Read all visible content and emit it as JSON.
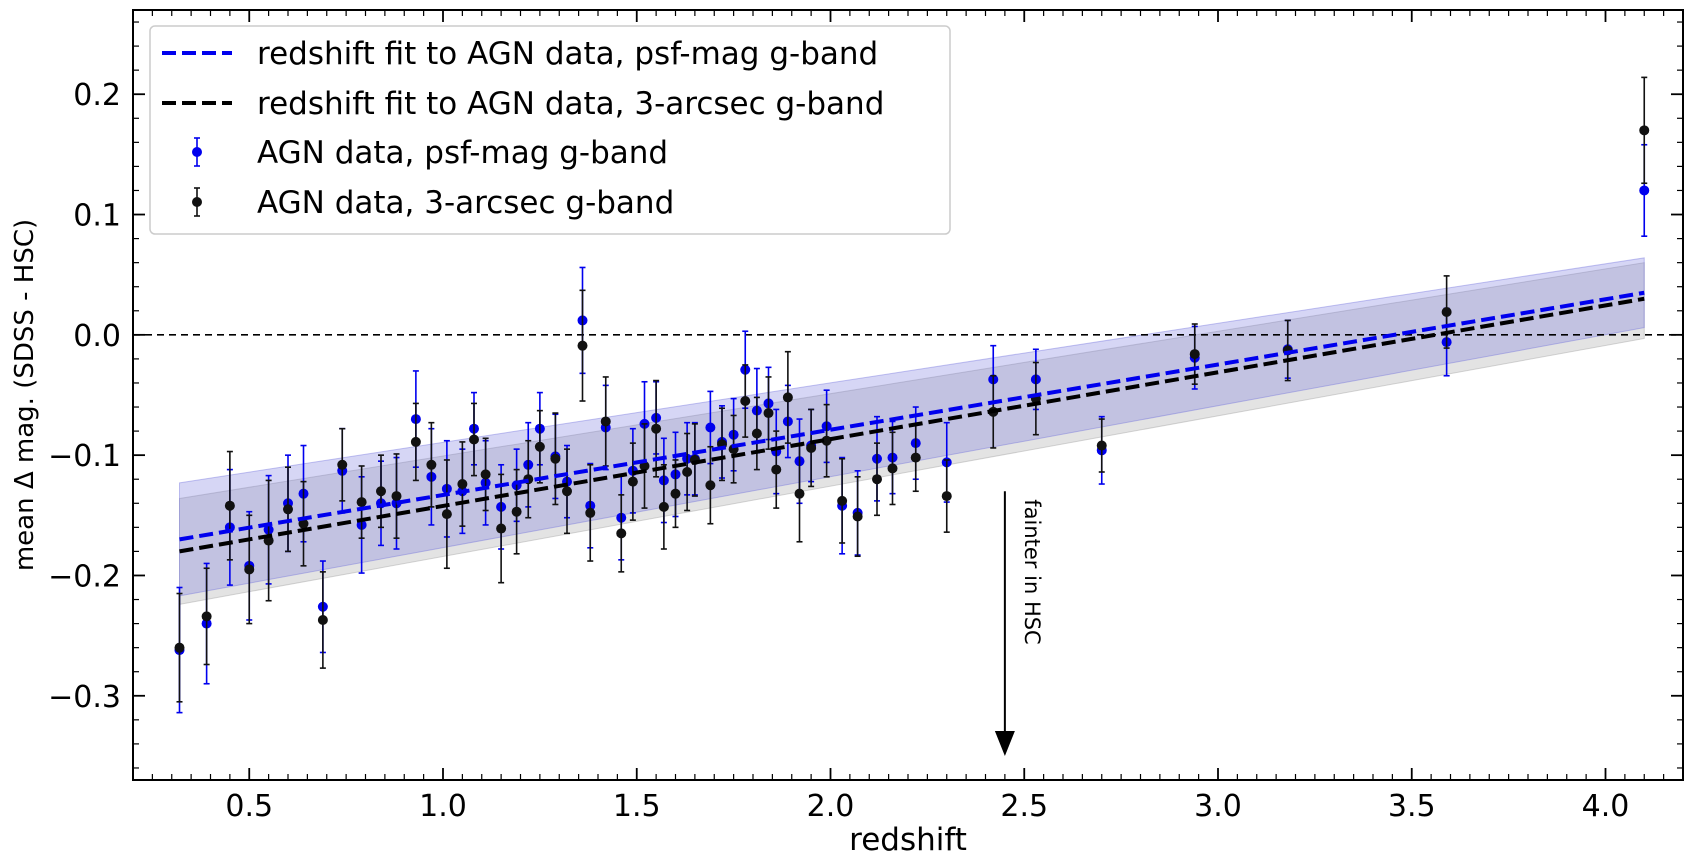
{
  "chart_data": {
    "type": "scatter",
    "xlabel": "redshift",
    "ylabel": "mean Δ mag. (SDSS - HSC)",
    "xlim": [
      0.2,
      4.2
    ],
    "ylim": [
      -0.37,
      0.27
    ],
    "x_ticks": [
      0.5,
      1.0,
      1.5,
      2.0,
      2.5,
      3.0,
      3.5,
      4.0
    ],
    "x_tick_labels": [
      "0.5",
      "1.0",
      "1.5",
      "2.0",
      "2.5",
      "3.0",
      "3.5",
      "4.0"
    ],
    "y_ticks": [
      -0.3,
      -0.2,
      -0.1,
      0.0,
      0.1,
      0.2
    ],
    "y_tick_labels": [
      "−0.3",
      "−0.2",
      "−0.1",
      "0.0",
      "0.1",
      "0.2"
    ],
    "grid": false,
    "legend_position": "top-left",
    "reference_line": {
      "y": 0.0,
      "style": "dashed",
      "color": "#000000"
    },
    "annotation": {
      "text": "fainter in HSC",
      "arrow_x": 2.45,
      "arrow_y_start": -0.13,
      "arrow_y_end": -0.35
    },
    "fits": [
      {
        "name": "redshift fit to AGN data, psf-mag g-band",
        "color": "#0000ee",
        "x": [
          0.32,
          4.1
        ],
        "y": [
          -0.17,
          0.035
        ],
        "band_upper": [
          -0.123,
          0.064
        ],
        "band_lower": [
          -0.217,
          0.006
        ],
        "band_color": "#6b6bdb"
      },
      {
        "name": "redshift fit to AGN data, 3-arcsec g-band",
        "color": "#000000",
        "x": [
          0.32,
          4.1
        ],
        "y": [
          -0.18,
          0.03
        ],
        "band_upper": [
          -0.136,
          0.06
        ],
        "band_lower": [
          -0.224,
          -0.003
        ],
        "band_color": "#9b9b9b"
      }
    ],
    "series": [
      {
        "name": "AGN data, psf-mag g-band",
        "color": "#0000ee",
        "points": [
          [
            0.32,
            -0.262,
            0.052
          ],
          [
            0.39,
            -0.24,
            0.05
          ],
          [
            0.45,
            -0.16,
            0.048
          ],
          [
            0.5,
            -0.192,
            0.045
          ],
          [
            0.55,
            -0.162,
            0.045
          ],
          [
            0.6,
            -0.14,
            0.04
          ],
          [
            0.64,
            -0.132,
            0.04
          ],
          [
            0.69,
            -0.226,
            0.038
          ],
          [
            0.74,
            -0.113,
            0.035
          ],
          [
            0.79,
            -0.158,
            0.04
          ],
          [
            0.84,
            -0.14,
            0.035
          ],
          [
            0.88,
            -0.14,
            0.038
          ],
          [
            0.93,
            -0.07,
            0.04
          ],
          [
            0.97,
            -0.118,
            0.04
          ],
          [
            1.01,
            -0.128,
            0.04
          ],
          [
            1.05,
            -0.13,
            0.035
          ],
          [
            1.08,
            -0.078,
            0.03
          ],
          [
            1.11,
            -0.123,
            0.035
          ],
          [
            1.15,
            -0.143,
            0.035
          ],
          [
            1.19,
            -0.125,
            0.03
          ],
          [
            1.22,
            -0.108,
            0.035
          ],
          [
            1.25,
            -0.078,
            0.03
          ],
          [
            1.29,
            -0.101,
            0.035
          ],
          [
            1.32,
            -0.122,
            0.03
          ],
          [
            1.36,
            0.012,
            0.044
          ],
          [
            1.38,
            -0.142,
            0.035
          ],
          [
            1.42,
            -0.077,
            0.035
          ],
          [
            1.46,
            -0.152,
            0.035
          ],
          [
            1.49,
            -0.113,
            0.035
          ],
          [
            1.52,
            -0.074,
            0.035
          ],
          [
            1.55,
            -0.069,
            0.03
          ],
          [
            1.57,
            -0.121,
            0.035
          ],
          [
            1.6,
            -0.116,
            0.035
          ],
          [
            1.63,
            -0.103,
            0.03
          ],
          [
            1.65,
            -0.103,
            0.03
          ],
          [
            1.69,
            -0.077,
            0.03
          ],
          [
            1.72,
            -0.089,
            0.03
          ],
          [
            1.75,
            -0.083,
            0.03
          ],
          [
            1.78,
            -0.029,
            0.032
          ],
          [
            1.81,
            -0.063,
            0.035
          ],
          [
            1.84,
            -0.057,
            0.03
          ],
          [
            1.86,
            -0.097,
            0.035
          ],
          [
            1.89,
            -0.072,
            0.03
          ],
          [
            1.92,
            -0.105,
            0.035
          ],
          [
            1.95,
            -0.092,
            0.03
          ],
          [
            1.99,
            -0.076,
            0.03
          ],
          [
            2.03,
            -0.142,
            0.04
          ],
          [
            2.07,
            -0.148,
            0.035
          ],
          [
            2.12,
            -0.103,
            0.035
          ],
          [
            2.16,
            -0.102,
            0.03
          ],
          [
            2.22,
            -0.09,
            0.03
          ],
          [
            2.3,
            -0.106,
            0.033
          ],
          [
            2.42,
            -0.037,
            0.028
          ],
          [
            2.53,
            -0.037,
            0.025
          ],
          [
            2.7,
            -0.096,
            0.028
          ],
          [
            2.94,
            -0.019,
            0.026
          ],
          [
            3.18,
            -0.012,
            0.024
          ],
          [
            3.59,
            -0.006,
            0.028
          ],
          [
            4.1,
            0.12,
            0.038
          ]
        ]
      },
      {
        "name": "AGN data, 3-arcsec g-band",
        "color": "#111111",
        "points": [
          [
            0.32,
            -0.26,
            0.045
          ],
          [
            0.39,
            -0.234,
            0.04
          ],
          [
            0.45,
            -0.142,
            0.045
          ],
          [
            0.5,
            -0.195,
            0.045
          ],
          [
            0.55,
            -0.171,
            0.05
          ],
          [
            0.6,
            -0.145,
            0.035
          ],
          [
            0.64,
            -0.157,
            0.035
          ],
          [
            0.69,
            -0.237,
            0.04
          ],
          [
            0.74,
            -0.108,
            0.03
          ],
          [
            0.79,
            -0.139,
            0.03
          ],
          [
            0.84,
            -0.13,
            0.03
          ],
          [
            0.88,
            -0.134,
            0.035
          ],
          [
            0.93,
            -0.089,
            0.032
          ],
          [
            0.97,
            -0.108,
            0.035
          ],
          [
            1.01,
            -0.149,
            0.045
          ],
          [
            1.05,
            -0.124,
            0.035
          ],
          [
            1.08,
            -0.087,
            0.03
          ],
          [
            1.11,
            -0.116,
            0.03
          ],
          [
            1.15,
            -0.161,
            0.045
          ],
          [
            1.19,
            -0.147,
            0.035
          ],
          [
            1.22,
            -0.12,
            0.032
          ],
          [
            1.25,
            -0.093,
            0.03
          ],
          [
            1.29,
            -0.103,
            0.038
          ],
          [
            1.32,
            -0.13,
            0.035
          ],
          [
            1.36,
            -0.009,
            0.046
          ],
          [
            1.38,
            -0.148,
            0.04
          ],
          [
            1.42,
            -0.072,
            0.037
          ],
          [
            1.46,
            -0.165,
            0.032
          ],
          [
            1.49,
            -0.122,
            0.032
          ],
          [
            1.52,
            -0.109,
            0.035
          ],
          [
            1.55,
            -0.078,
            0.04
          ],
          [
            1.57,
            -0.143,
            0.035
          ],
          [
            1.6,
            -0.132,
            0.028
          ],
          [
            1.63,
            -0.114,
            0.032
          ],
          [
            1.65,
            -0.104,
            0.03
          ],
          [
            1.69,
            -0.125,
            0.032
          ],
          [
            1.72,
            -0.091,
            0.03
          ],
          [
            1.75,
            -0.095,
            0.028
          ],
          [
            1.78,
            -0.055,
            0.03
          ],
          [
            1.81,
            -0.082,
            0.03
          ],
          [
            1.84,
            -0.065,
            0.03
          ],
          [
            1.86,
            -0.112,
            0.032
          ],
          [
            1.89,
            -0.052,
            0.038
          ],
          [
            1.92,
            -0.132,
            0.04
          ],
          [
            1.95,
            -0.094,
            0.032
          ],
          [
            1.99,
            -0.088,
            0.03
          ],
          [
            2.03,
            -0.138,
            0.035
          ],
          [
            2.07,
            -0.151,
            0.033
          ],
          [
            2.12,
            -0.12,
            0.03
          ],
          [
            2.16,
            -0.111,
            0.03
          ],
          [
            2.22,
            -0.102,
            0.028
          ],
          [
            2.3,
            -0.134,
            0.03
          ],
          [
            2.42,
            -0.064,
            0.03
          ],
          [
            2.53,
            -0.053,
            0.03
          ],
          [
            2.7,
            -0.092,
            0.022
          ],
          [
            2.94,
            -0.016,
            0.025
          ],
          [
            3.18,
            -0.013,
            0.025
          ],
          [
            3.59,
            0.019,
            0.03
          ],
          [
            4.1,
            0.17,
            0.044
          ]
        ]
      }
    ]
  }
}
